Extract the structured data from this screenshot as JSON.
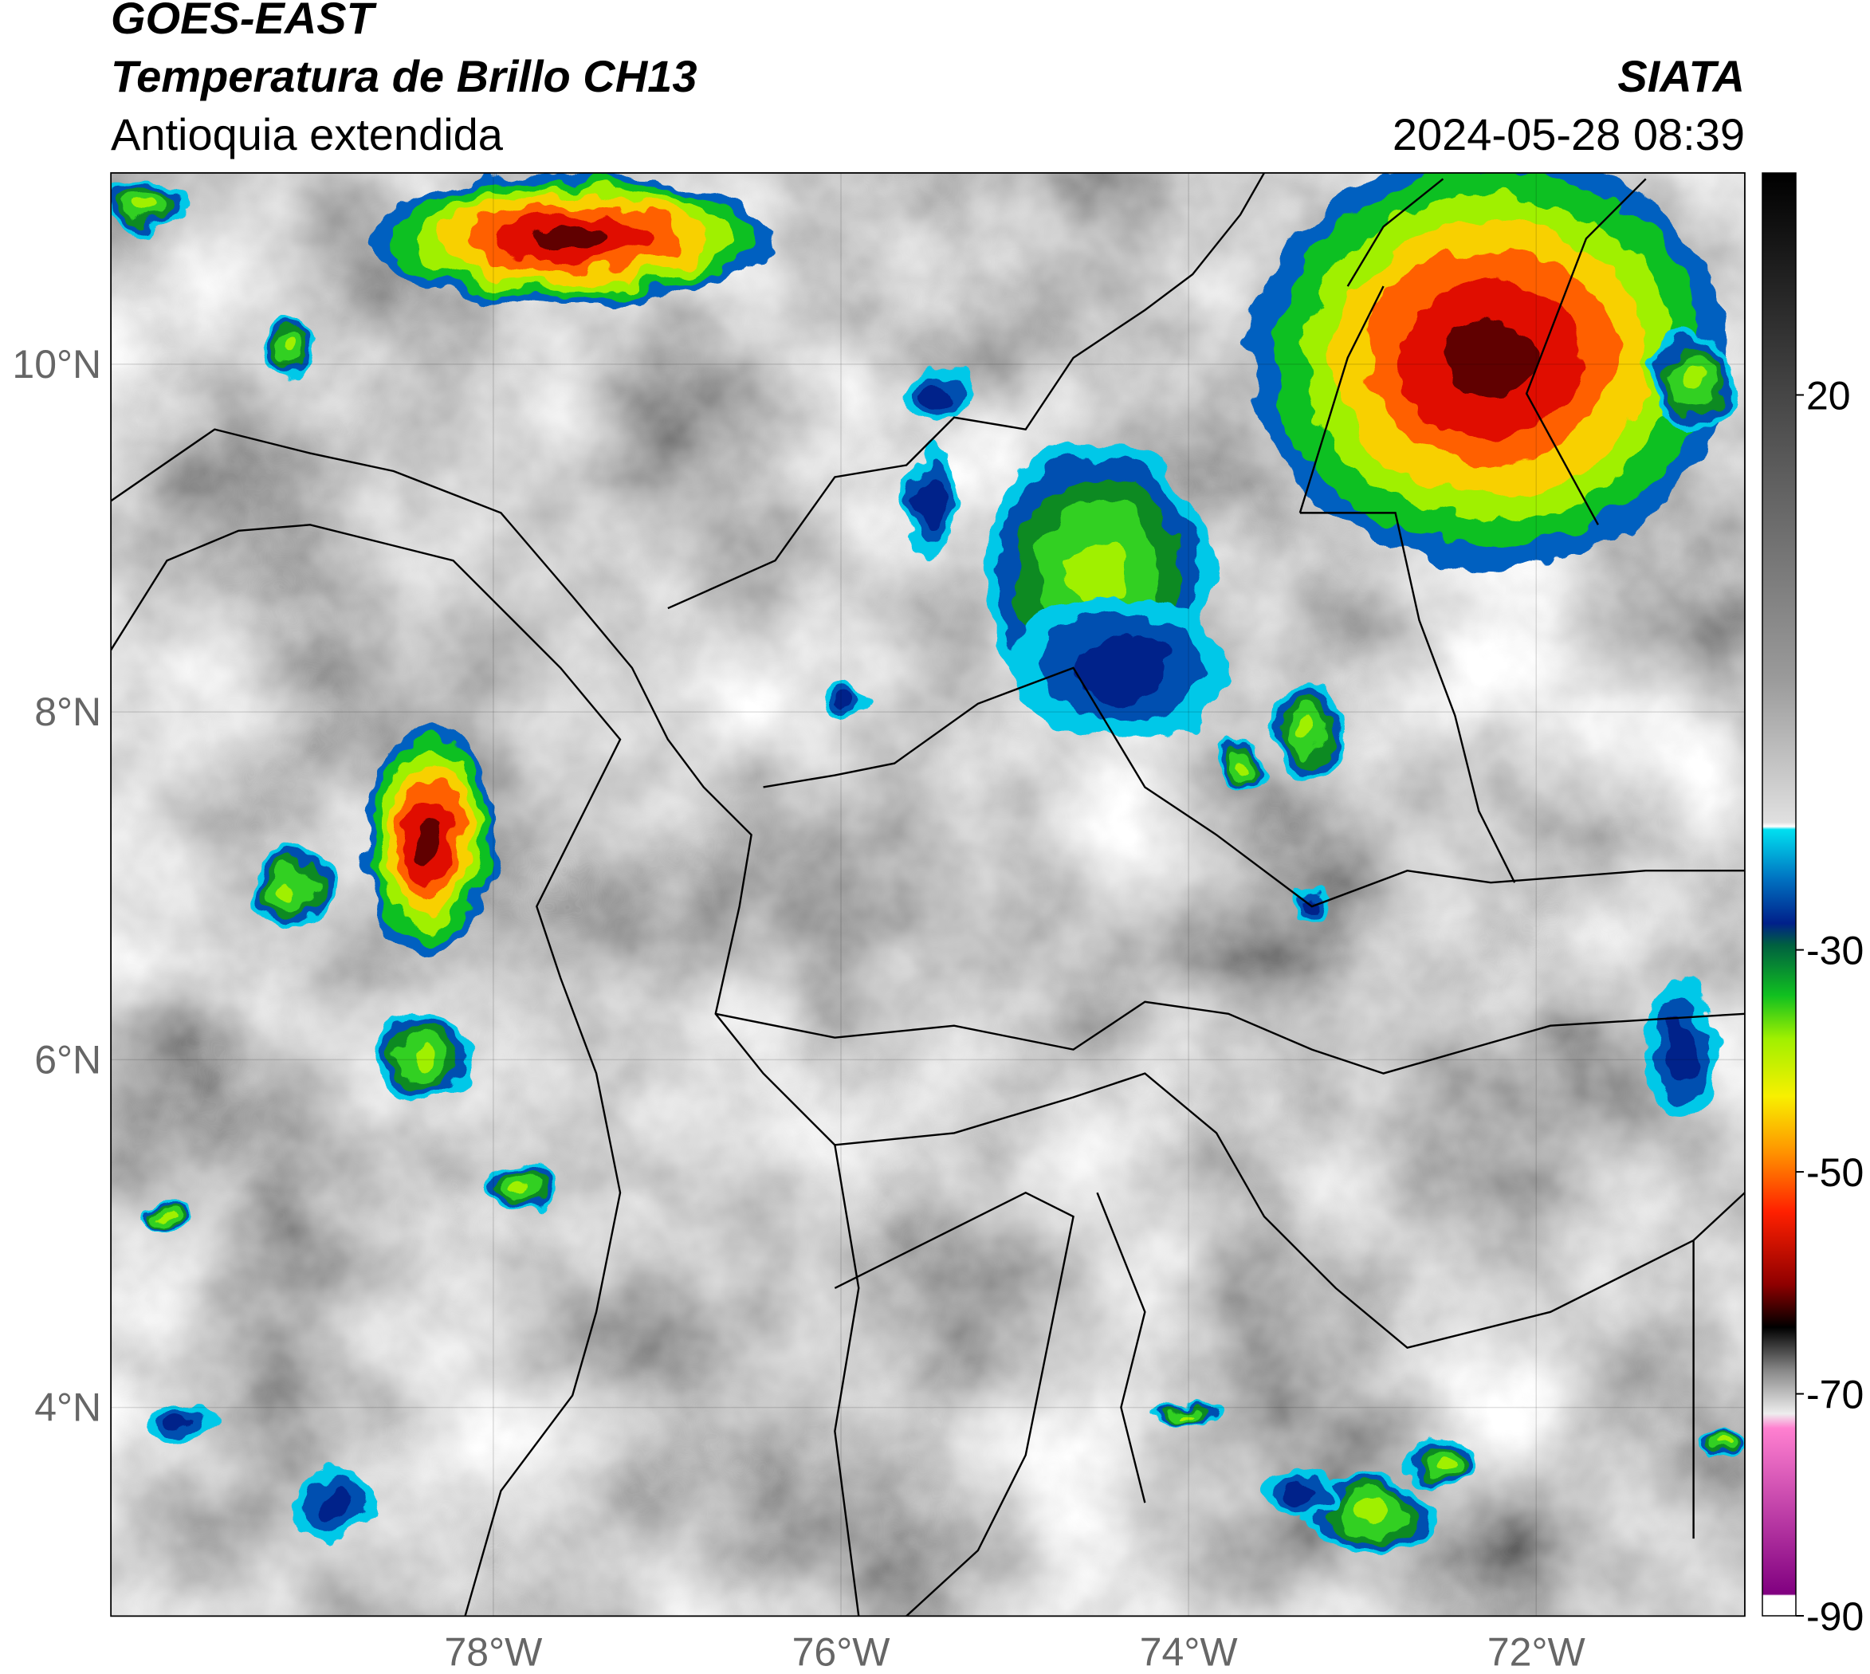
{
  "header": {
    "satellite": "GOES-EAST",
    "product": "Temperatura de Brillo CH13",
    "region": "Antioquia extendida",
    "source": "SIATA",
    "datetime": "2024-05-28 08:39"
  },
  "map": {
    "xlim": [
      -80.2,
      -70.8
    ],
    "ylim": [
      2.8,
      11.1
    ],
    "grid": true,
    "lat_ticks": [
      {
        "value": 10,
        "label": "10°N"
      },
      {
        "value": 8,
        "label": "8°N"
      },
      {
        "value": 6,
        "label": "6°N"
      },
      {
        "value": 4,
        "label": "4°N"
      }
    ],
    "lon_ticks": [
      {
        "value": -78,
        "label": "78°W"
      },
      {
        "value": -76,
        "label": "76°W"
      },
      {
        "value": -74,
        "label": "74°W"
      },
      {
        "value": -72,
        "label": "72°W"
      }
    ]
  },
  "colorbar": {
    "lim": [
      -90,
      40
    ],
    "ticks": [
      20,
      -30,
      -50,
      -70,
      -90
    ]
  }
}
